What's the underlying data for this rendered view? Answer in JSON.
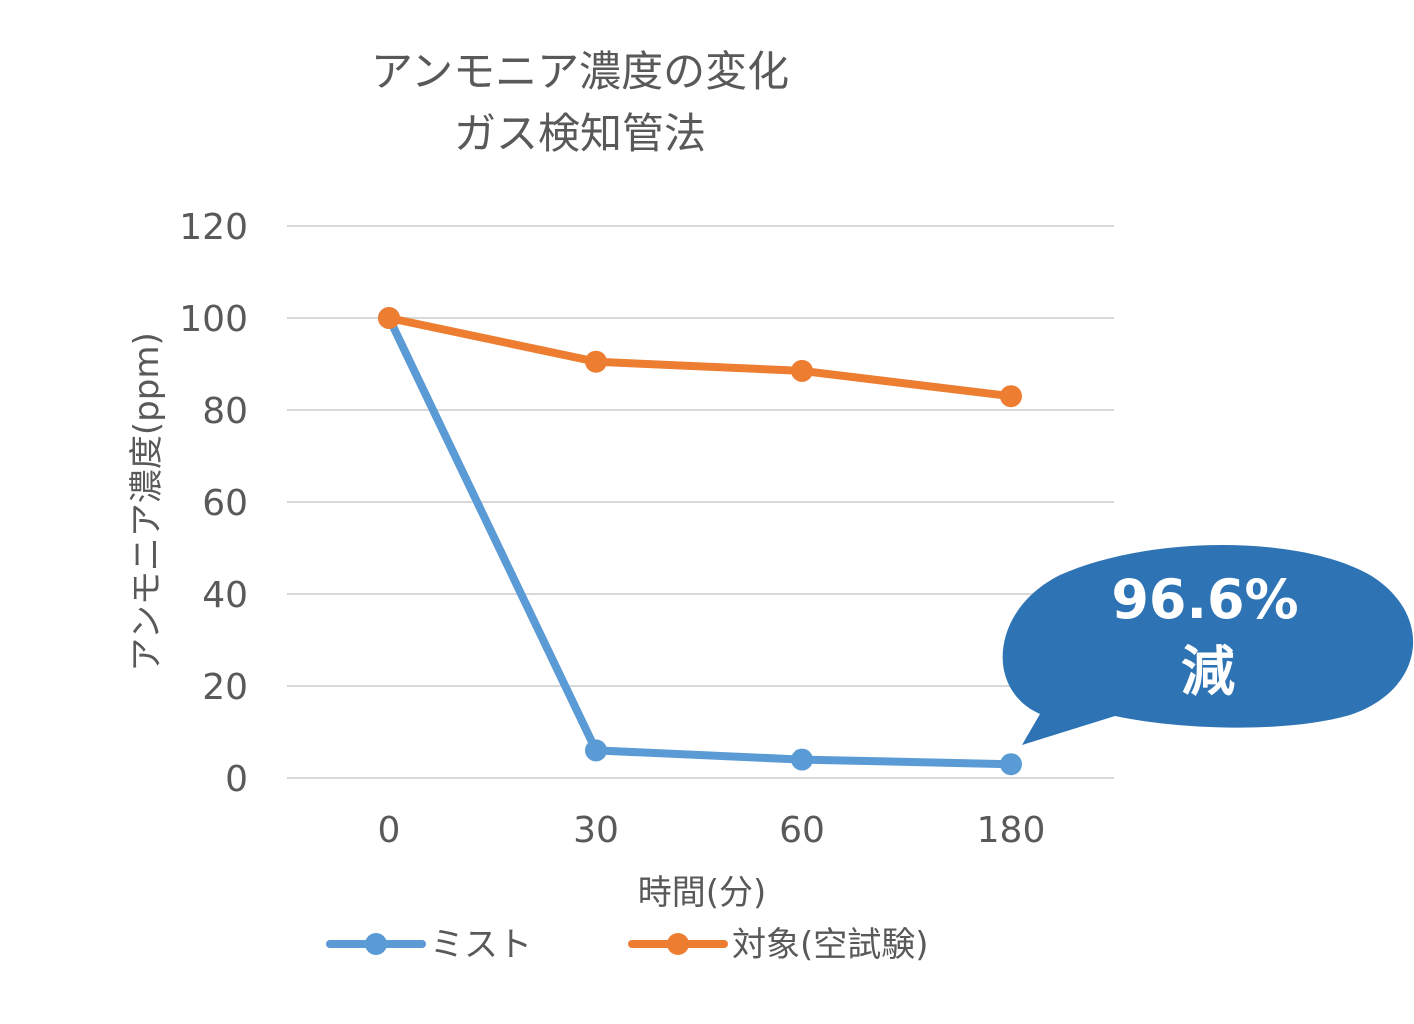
{
  "chart_data": {
    "type": "line",
    "title_lines": [
      "アンモニア濃度の変化",
      "ガス検知管法"
    ],
    "xlabel": "時間(分)",
    "ylabel": "アンモニア濃度(ppm)",
    "categories": [
      "0",
      "30",
      "60",
      "180"
    ],
    "ylim": [
      0,
      120
    ],
    "yticks": [
      0,
      20,
      40,
      60,
      80,
      100,
      120
    ],
    "grid": true,
    "legend_position": "bottom",
    "series": [
      {
        "name": "ミスト",
        "values": [
          100,
          6,
          4,
          3
        ],
        "color": "#5b9bd5"
      },
      {
        "name": "対象(空試験)",
        "values": [
          100,
          90.5,
          88.5,
          83
        ],
        "color": "#ed7d31"
      }
    ],
    "annotation": {
      "lines": [
        "96.6%",
        "減"
      ],
      "color": "#2e74b5",
      "text_color": "#ffffff"
    }
  }
}
